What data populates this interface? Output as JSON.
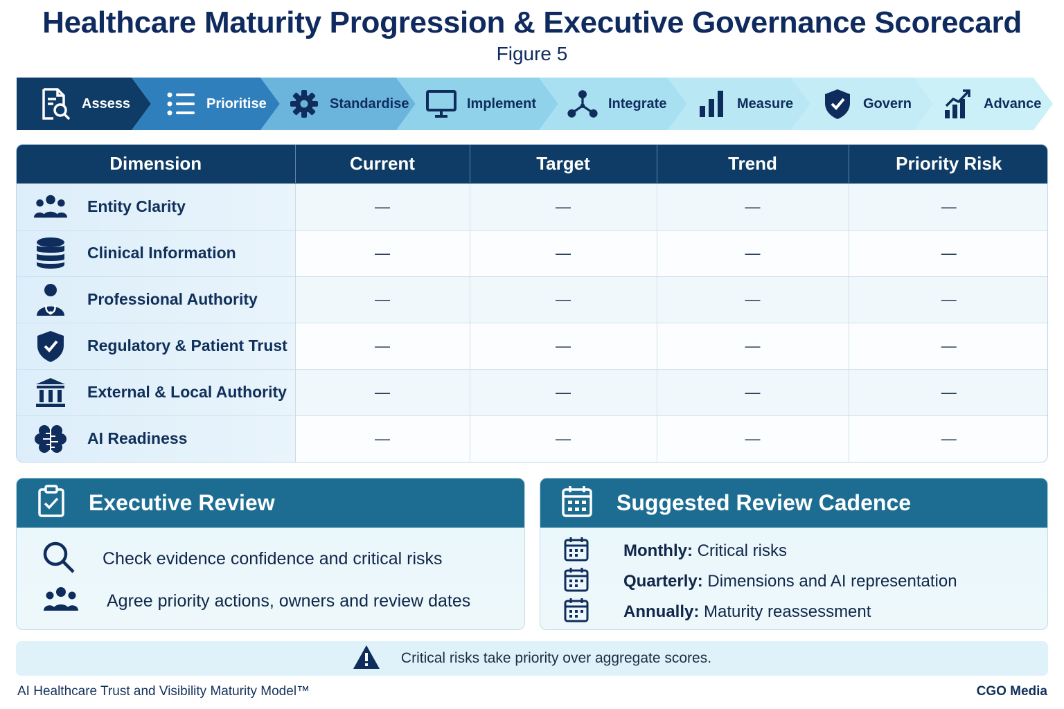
{
  "header": {
    "title": "Healthcare Maturity Progression & Executive Governance Scorecard",
    "subtitle": "Figure 5"
  },
  "process": {
    "steps": [
      {
        "label": "Assess",
        "icon": "document-search-icon",
        "color": "#0e3c66",
        "text_color": "#ffffff"
      },
      {
        "label": "Prioritise",
        "icon": "list-icon",
        "color": "#2f7fbd",
        "text_color": "#ffffff"
      },
      {
        "label": "Standardise",
        "icon": "gear-icon",
        "color": "#6bb4dc",
        "text_color": "#0f2d5c"
      },
      {
        "label": "Implement",
        "icon": "monitor-icon",
        "color": "#8fd2ea",
        "text_color": "#0f2d5c"
      },
      {
        "label": "Integrate",
        "icon": "network-icon",
        "color": "#a9e0f1",
        "text_color": "#0f2d5c"
      },
      {
        "label": "Measure",
        "icon": "bar-chart-icon",
        "color": "#b9e8f4",
        "text_color": "#0f2d5c"
      },
      {
        "label": "Govern",
        "icon": "shield-check-icon",
        "color": "#c4ecf6",
        "text_color": "#0f2d5c"
      },
      {
        "label": "Advance",
        "icon": "growth-chart-icon",
        "color": "#ccf0f8",
        "text_color": "#0f2d5c"
      }
    ]
  },
  "scorecard": {
    "columns": [
      "Dimension",
      "Current",
      "Target",
      "Trend",
      "Priority Risk"
    ],
    "rows": [
      {
        "dimension": "Entity Clarity",
        "icon": "people-group-icon",
        "current": "—",
        "target": "—",
        "trend": "—",
        "priority_risk": "—"
      },
      {
        "dimension": "Clinical Information",
        "icon": "database-icon",
        "current": "—",
        "target": "—",
        "trend": "—",
        "priority_risk": "—"
      },
      {
        "dimension": "Professional Authority",
        "icon": "doctor-icon",
        "current": "—",
        "target": "—",
        "trend": "—",
        "priority_risk": "—"
      },
      {
        "dimension": "Regulatory & Patient Trust",
        "icon": "shield-check-icon",
        "current": "—",
        "target": "—",
        "trend": "—",
        "priority_risk": "—"
      },
      {
        "dimension": "External & Local Authority",
        "icon": "institution-icon",
        "current": "—",
        "target": "—",
        "trend": "—",
        "priority_risk": "—"
      },
      {
        "dimension": "AI Readiness",
        "icon": "brain-icon",
        "current": "—",
        "target": "—",
        "trend": "—",
        "priority_risk": "—"
      }
    ]
  },
  "executive_review": {
    "title": "Executive Review",
    "icon": "clipboard-check-icon",
    "items": [
      {
        "text": "Check evidence confidence and critical risks",
        "icon": "search-icon"
      },
      {
        "text": "Agree priority actions, owners and review dates",
        "icon": "people-group-icon"
      }
    ]
  },
  "review_cadence": {
    "title": "Suggested Review Cadence",
    "icon": "calendar-icon",
    "items": [
      {
        "label": "Monthly:",
        "text": " Critical risks"
      },
      {
        "label": "Quarterly:",
        "text": " Dimensions and AI representation"
      },
      {
        "label": "Annually:",
        "text": " Maturity reassessment"
      }
    ]
  },
  "alert": {
    "text": "Critical risks take priority over aggregate scores.",
    "icon": "warning-icon"
  },
  "footer": {
    "left": "AI Healthcare Trust and Visibility Maturity Model™",
    "right": "CGO Media"
  }
}
